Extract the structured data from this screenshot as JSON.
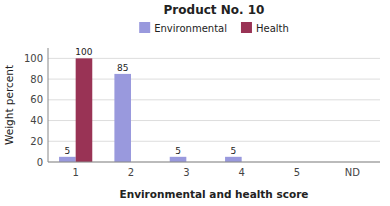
{
  "chart_data": {
    "type": "bar",
    "title": "Product No. 10",
    "xlabel": "Environmental and health score",
    "ylabel": "Weight percent",
    "categories": [
      "1",
      "2",
      "3",
      "4",
      "5",
      "ND"
    ],
    "series": [
      {
        "name": "Environmental",
        "color": "#9999dd",
        "values": [
          5,
          85,
          5,
          5,
          0,
          0
        ]
      },
      {
        "name": "Health",
        "color": "#993355",
        "values": [
          100,
          0,
          0,
          0,
          0,
          0
        ]
      }
    ],
    "ylim": [
      0,
      110
    ],
    "yticks": [
      0,
      20,
      40,
      60,
      80,
      100
    ],
    "grid": true,
    "legend": "top",
    "data_labels": true
  }
}
